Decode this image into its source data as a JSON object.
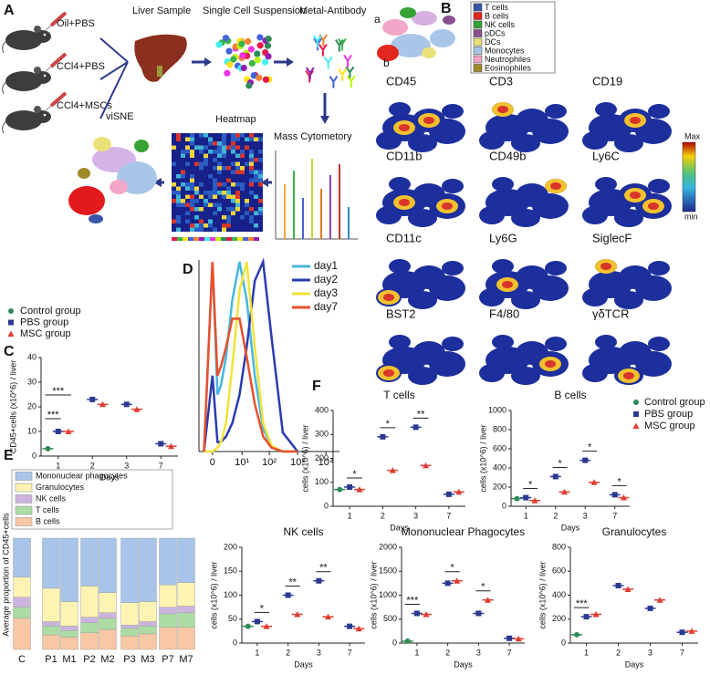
{
  "panel_a": {
    "label": "A",
    "groups": [
      "Oil+PBS",
      "CCl4+PBS",
      "CCl4+MSCs"
    ],
    "steps": [
      "Liver Sample",
      "Single Cell Suspension",
      "Metal-Antibody",
      "Mass Cytometory",
      "Heatmap",
      "viSNE"
    ]
  },
  "panel_b": {
    "label": "B",
    "sub_a": "a",
    "sub_b": "b",
    "cell_types": [
      {
        "name": "T cells",
        "color": "#3b55a8"
      },
      {
        "name": "B cells",
        "color": "#e3261f"
      },
      {
        "name": "NK cells",
        "color": "#36a234"
      },
      {
        "name": "pDCs",
        "color": "#8a4f8e"
      },
      {
        "name": "DCs",
        "color": "#e9e27a"
      },
      {
        "name": "Monocytes",
        "color": "#a9c6e8"
      },
      {
        "name": "Neutrophiles",
        "color": "#f2a7c9"
      },
      {
        "name": "Eosinophiles",
        "color": "#a08a2a"
      }
    ],
    "markers": [
      "CD45",
      "CD3",
      "CD19",
      "CD11b",
      "CD49b",
      "Ly6C",
      "CD11c",
      "Ly6G",
      "SiglecF",
      "BST2",
      "F4/80",
      "γδTCR"
    ],
    "scale_max": "Max",
    "scale_min": "min"
  },
  "chart_data": [
    {
      "type": "dot",
      "panel_label": "C",
      "categories": [
        "1",
        "2",
        "3",
        "7"
      ],
      "xlabel": "Days",
      "ylabel": "CD45+cells (x10^6) / liver",
      "ylim": [
        0,
        40
      ],
      "yticks": [
        0,
        10,
        20,
        30,
        40
      ],
      "series": [
        {
          "name": "Control group",
          "color": "#2e8b57",
          "marker": "circle",
          "values": [
            3,
            null,
            null,
            null
          ]
        },
        {
          "name": "PBS group",
          "color": "#2b3990",
          "marker": "square",
          "values": [
            10,
            23,
            21,
            5
          ]
        },
        {
          "name": "MSC group",
          "color": "#e03c31",
          "marker": "triangle",
          "values": [
            10,
            21,
            19,
            4
          ]
        }
      ],
      "annotations": [
        "***",
        "***"
      ]
    },
    {
      "type": "line",
      "panel_label": "D",
      "xscale": "symlog",
      "x": [
        -1,
        0,
        0.5,
        1,
        2,
        4,
        8,
        15,
        30,
        60,
        120,
        300,
        1000
      ],
      "xlim": [
        -2,
        30000
      ],
      "ylim": [
        0,
        100
      ],
      "xticks": [
        0,
        {
          "value": 10,
          "label": "10¹"
        },
        {
          "value": 100,
          "label": "10²"
        },
        {
          "value": 1000,
          "label": "10³"
        },
        {
          "value": 10000,
          "label": "10⁴"
        }
      ],
      "series": [
        {
          "name": "day1",
          "color": "#45b7e0",
          "values": [
            0,
            100,
            30,
            35,
            50,
            80,
            100,
            80,
            40,
            12,
            3,
            0,
            0
          ]
        },
        {
          "name": "day2",
          "color": "#2b3bb0",
          "values": [
            0,
            40,
            5,
            5,
            8,
            15,
            30,
            55,
            90,
            100,
            60,
            10,
            0
          ]
        },
        {
          "name": "day3",
          "color": "#f2e33a",
          "values": [
            0,
            0,
            2,
            5,
            15,
            45,
            85,
            100,
            55,
            15,
            3,
            0,
            0
          ]
        },
        {
          "name": "day7",
          "color": "#e8502c",
          "values": [
            0,
            100,
            40,
            45,
            55,
            70,
            70,
            50,
            25,
            8,
            2,
            0,
            0
          ]
        }
      ]
    },
    {
      "type": "stacked-bar",
      "panel_label": "E",
      "ylabel": "Average proportion of CD45+cells",
      "categories": [
        "C",
        "P1",
        "M1",
        "P2",
        "M2",
        "P3",
        "M3",
        "P7",
        "M7"
      ],
      "ylim": [
        0,
        1
      ],
      "series": [
        {
          "name": "B cells",
          "color": "#f8c7a4",
          "values": [
            0.28,
            0.13,
            0.11,
            0.15,
            0.18,
            0.12,
            0.14,
            0.2,
            0.2
          ]
        },
        {
          "name": "T cells",
          "color": "#acdca4",
          "values": [
            0.1,
            0.08,
            0.06,
            0.09,
            0.1,
            0.07,
            0.07,
            0.12,
            0.13
          ]
        },
        {
          "name": "NK  cells",
          "color": "#cbb5de",
          "values": [
            0.09,
            0.04,
            0.04,
            0.05,
            0.05,
            0.03,
            0.04,
            0.06,
            0.06
          ]
        },
        {
          "name": "Granulocytes",
          "color": "#fdf3b2",
          "values": [
            0.18,
            0.3,
            0.22,
            0.28,
            0.18,
            0.2,
            0.18,
            0.2,
            0.21
          ]
        },
        {
          "name": "Mononuclear phagocytes",
          "color": "#a9c4e9",
          "values": [
            0.35,
            0.45,
            0.57,
            0.43,
            0.49,
            0.58,
            0.57,
            0.42,
            0.4
          ]
        }
      ]
    },
    {
      "type": "dot-panels",
      "panel_label": "F",
      "categories": [
        "1",
        "2",
        "3",
        "7"
      ],
      "series": [
        {
          "name": "Control group",
          "color": "#2e8b57",
          "marker": "circle"
        },
        {
          "name": "PBS group",
          "color": "#2b3990",
          "marker": "square"
        },
        {
          "name": "MSC group",
          "color": "#e03c31",
          "marker": "triangle"
        }
      ],
      "panels": [
        {
          "title": "T cells",
          "xlabel": "Days",
          "ylabel": "cells (x10^6) / liver",
          "ylim": [
            0,
            400
          ],
          "yticks": [
            0,
            100,
            200,
            300,
            400
          ],
          "values": [
            [
              70,
              null,
              null,
              null
            ],
            [
              80,
              290,
              330,
              50
            ],
            [
              70,
              150,
              170,
              60
            ]
          ],
          "annotations": [
            "*",
            "*",
            "**"
          ]
        },
        {
          "title": "B cells",
          "xlabel": "Days",
          "ylabel": "cells (x10^6) / liver",
          "ylim": [
            0,
            1000
          ],
          "yticks": [
            0,
            200,
            400,
            600,
            800,
            1000
          ],
          "values": [
            [
              80,
              null,
              null,
              null
            ],
            [
              90,
              310,
              480,
              120
            ],
            [
              60,
              150,
              250,
              90
            ]
          ],
          "annotations": [
            "*",
            "*",
            "*",
            "*"
          ]
        },
        {
          "title": "NK cells",
          "xlabel": "Days",
          "ylabel": "cells (x10^6) / liver",
          "ylim": [
            0,
            200
          ],
          "yticks": [
            0,
            50,
            100,
            150,
            200
          ],
          "values": [
            [
              35,
              null,
              null,
              null
            ],
            [
              45,
              100,
              130,
              35
            ],
            [
              35,
              60,
              55,
              30
            ]
          ],
          "annotations": [
            "*",
            "**",
            "**"
          ]
        },
        {
          "title": "Mononuclear Phagocytes",
          "xlabel": "Days",
          "ylabel": "cells (x10^6) / liver",
          "ylim": [
            0,
            2000
          ],
          "yticks": [
            0,
            500,
            1000,
            1500,
            2000
          ],
          "values": [
            [
              40,
              null,
              null,
              null
            ],
            [
              620,
              1250,
              620,
              100
            ],
            [
              600,
              1300,
              900,
              90
            ]
          ],
          "annotations": [
            "***",
            "*",
            "*"
          ]
        },
        {
          "title": "Granulocytes",
          "xlabel": "Days",
          "ylabel": "cells (x10^6) / liver",
          "ylim": [
            0,
            800
          ],
          "yticks": [
            0,
            200,
            400,
            600,
            800
          ],
          "values": [
            [
              70,
              null,
              null,
              null
            ],
            [
              220,
              480,
              290,
              90
            ],
            [
              240,
              450,
              360,
              100
            ]
          ],
          "annotations": [
            "***"
          ]
        }
      ]
    }
  ]
}
